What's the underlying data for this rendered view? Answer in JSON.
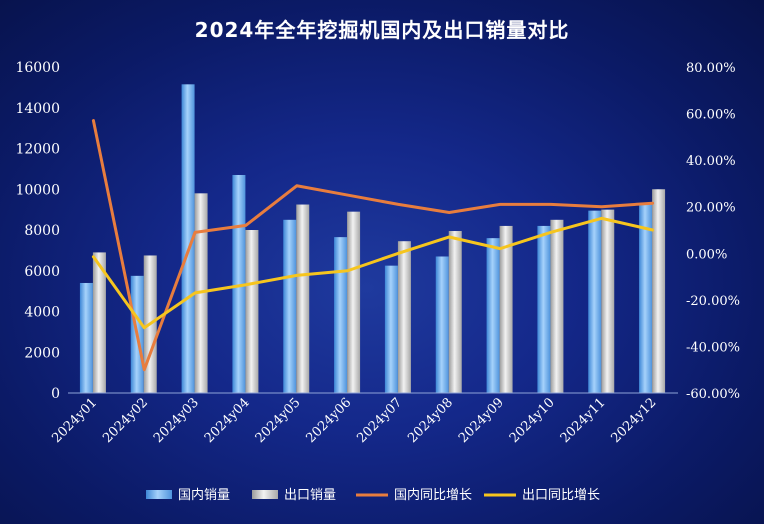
{
  "chart_data": {
    "type": "bar",
    "title": "2024年全年挖掘机国内及出口销量对比",
    "categories": [
      "2024y01",
      "2024y02",
      "2024y03",
      "2024y04",
      "2024y05",
      "2024y06",
      "2024y07",
      "2024y08",
      "2024y09",
      "2024y10",
      "2024y11",
      "2024y12"
    ],
    "y_left": {
      "min": 0,
      "max": 16000,
      "step": 2000,
      "ticks": [
        "0",
        "2000",
        "4000",
        "6000",
        "8000",
        "10000",
        "12000",
        "14000",
        "16000"
      ]
    },
    "y_right": {
      "min": -60,
      "max": 80,
      "step": 20,
      "ticks": [
        "-60.00%",
        "-40.00%",
        "-20.00%",
        "0.00%",
        "20.00%",
        "40.00%",
        "60.00%",
        "80.00%"
      ]
    },
    "series": [
      {
        "name": "国内销量",
        "kind": "bar",
        "axis": "left",
        "color": "#6fb0ee",
        "values": [
          5400,
          5750,
          15150,
          10700,
          8500,
          7650,
          6250,
          6700,
          7600,
          8200,
          8950,
          9300
        ]
      },
      {
        "name": "出口销量",
        "kind": "bar",
        "axis": "left",
        "color": "#c8c8c8",
        "values": [
          6900,
          6750,
          9800,
          8000,
          9250,
          8900,
          7450,
          7950,
          8200,
          8500,
          9000,
          10000
        ]
      },
      {
        "name": "国内同比增长",
        "kind": "line",
        "axis": "right",
        "color": "#e87d3e",
        "values": [
          57,
          -50,
          9,
          12,
          29,
          25,
          21,
          17.5,
          21,
          21,
          20,
          21.5
        ]
      },
      {
        "name": "出口同比增长",
        "kind": "line",
        "axis": "right",
        "color": "#f6c51e",
        "values": [
          -1.5,
          -32,
          -17,
          -13.5,
          -9.5,
          -7.5,
          0,
          7,
          2,
          9,
          15,
          10
        ]
      }
    ],
    "grid": false,
    "legend_position": "bottom"
  }
}
